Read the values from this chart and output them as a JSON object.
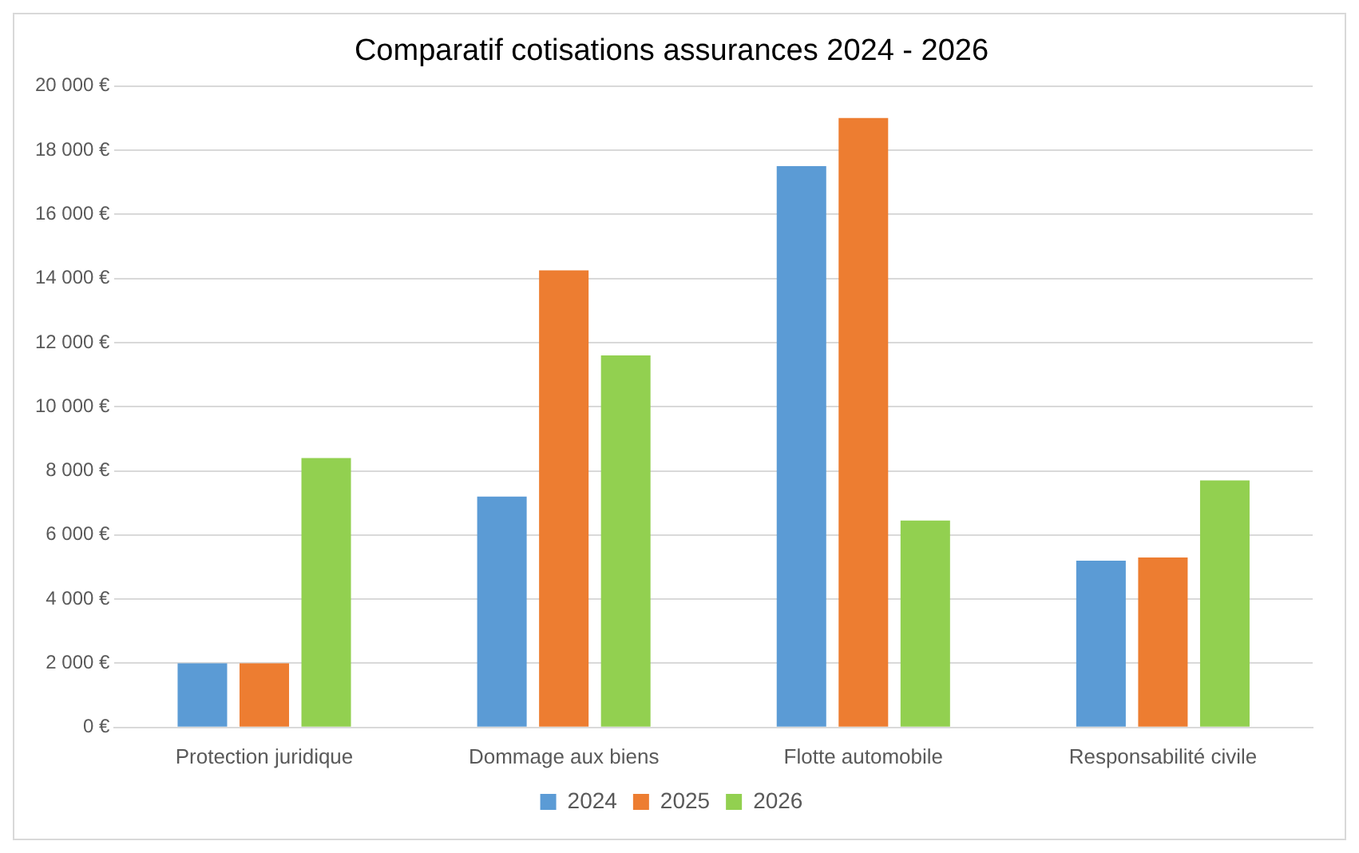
{
  "chart_data": {
    "type": "bar",
    "title": "Comparatif cotisations assurances 2024 - 2026",
    "categories": [
      "Protection juridique",
      "Dommage aux biens",
      "Flotte automobile",
      "Responsabilité civile"
    ],
    "series": [
      {
        "name": "2024",
        "color": "#5b9bd5",
        "values": [
          2000,
          7200,
          17500,
          5200
        ]
      },
      {
        "name": "2025",
        "color": "#ed7d31",
        "values": [
          2000,
          14250,
          19000,
          5300
        ]
      },
      {
        "name": "2026",
        "color": "#92d050",
        "values": [
          8400,
          11600,
          6450,
          7700
        ]
      }
    ],
    "ylim": [
      0,
      20000
    ],
    "yticks": [
      {
        "value": 0,
        "label": "0 €"
      },
      {
        "value": 2000,
        "label": "2 000 €"
      },
      {
        "value": 4000,
        "label": "4 000 €"
      },
      {
        "value": 6000,
        "label": "6 000 €"
      },
      {
        "value": 8000,
        "label": "8 000 €"
      },
      {
        "value": 10000,
        "label": "10 000 €"
      },
      {
        "value": 12000,
        "label": "12 000 €"
      },
      {
        "value": 14000,
        "label": "14 000 €"
      },
      {
        "value": 16000,
        "label": "16 000 €"
      },
      {
        "value": 18000,
        "label": "18 000 €"
      },
      {
        "value": 20000,
        "label": "20 000 €"
      }
    ],
    "grid": "y",
    "legend": "bottom"
  }
}
